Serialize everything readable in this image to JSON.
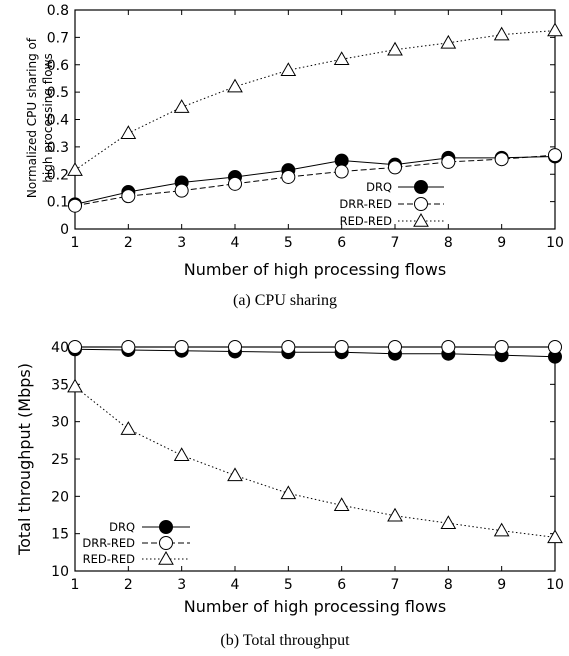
{
  "chart_data": [
    {
      "type": "line",
      "caption": "(a) CPU sharing",
      "xlabel": "Number of high processing flows",
      "ylabel": "Normalized CPU sharing of high processing flows",
      "ylabel_lines": [
        "Normalized CPU sharing of",
        "high processing flows"
      ],
      "x": [
        1,
        2,
        3,
        4,
        5,
        6,
        7,
        8,
        9,
        10
      ],
      "xlim": [
        1,
        10
      ],
      "ylim": [
        0,
        0.8
      ],
      "xticks": [
        "1",
        "2",
        "3",
        "4",
        "5",
        "6",
        "7",
        "8",
        "9",
        "10"
      ],
      "yticks": [
        "0",
        "0.1",
        "0.2",
        "0.3",
        "0.4",
        "0.5",
        "0.6",
        "0.7",
        "0.8"
      ],
      "grid": false,
      "legend_position": "lower-right",
      "series": [
        {
          "name": "DRQ",
          "marker": "filled-circle",
          "line": "solid",
          "values": [
            0.09,
            0.135,
            0.17,
            0.19,
            0.215,
            0.25,
            0.235,
            0.26,
            0.26,
            0.265
          ]
        },
        {
          "name": "DRR-RED",
          "marker": "open-circle",
          "line": "dashed",
          "values": [
            0.085,
            0.12,
            0.14,
            0.165,
            0.19,
            0.21,
            0.225,
            0.245,
            0.255,
            0.27
          ]
        },
        {
          "name": "RED-RED",
          "marker": "open-triangle",
          "line": "dotted",
          "values": [
            0.215,
            0.35,
            0.445,
            0.52,
            0.58,
            0.62,
            0.655,
            0.68,
            0.71,
            0.725
          ]
        }
      ]
    },
    {
      "type": "line",
      "caption": "(b) Total throughput",
      "xlabel": "Number of high processing flows",
      "ylabel": "Total throughput (Mbps)",
      "ylabel_lines": [
        "Total throughput (Mbps)"
      ],
      "x": [
        1,
        2,
        3,
        4,
        5,
        6,
        7,
        8,
        9,
        10
      ],
      "xlim": [
        1,
        10
      ],
      "ylim": [
        10,
        40
      ],
      "xticks": [
        "1",
        "2",
        "3",
        "4",
        "5",
        "6",
        "7",
        "8",
        "9",
        "10"
      ],
      "yticks": [
        "10",
        "15",
        "20",
        "25",
        "30",
        "35",
        "40"
      ],
      "grid": false,
      "legend_position": "lower-left",
      "series": [
        {
          "name": "DRQ",
          "marker": "filled-circle",
          "line": "solid",
          "values": [
            39.7,
            39.6,
            39.5,
            39.4,
            39.3,
            39.3,
            39.1,
            39.1,
            38.9,
            38.7
          ]
        },
        {
          "name": "DRR-RED",
          "marker": "open-circle",
          "line": "dashed",
          "values": [
            40.0,
            40.0,
            40.0,
            40.0,
            40.0,
            40.0,
            40.0,
            40.0,
            40.0,
            40.0
          ]
        },
        {
          "name": "RED-RED",
          "marker": "open-triangle",
          "line": "dotted",
          "values": [
            34.7,
            29.0,
            25.5,
            22.8,
            20.4,
            18.8,
            17.4,
            16.4,
            15.4,
            14.5
          ]
        }
      ]
    }
  ]
}
